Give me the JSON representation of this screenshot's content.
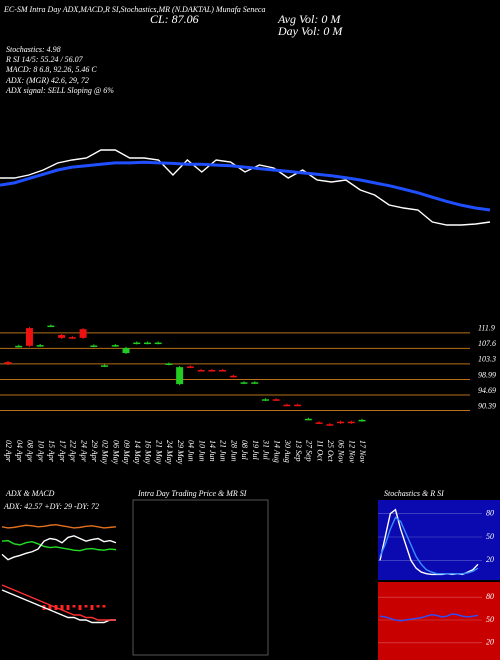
{
  "header": {
    "title": "EC-SM Intra Day ADX,MACD,R SI,Stochastics,MR (N.DAKTAL) Munafa Seneca",
    "close": "CL: 87.06",
    "avg_vol": "Avg Vol: 0  M",
    "day_vol": "Day Vol: 0  M",
    "stochastics": "Stochastics: 4.98",
    "rsi": "R  SI 14/5: 55.24 / 56.07",
    "macd": "MACD: 8  6.8, 92.26, 5.46  C",
    "adx": "ADX:  (MGR) 42.6, 29, 72",
    "adx_signal": "ADX  signal: SELL Sloping @ 6%"
  },
  "chart_data": [
    {
      "type": "line",
      "ylim": [
        80,
        115
      ],
      "series": [
        {
          "color": "#ffffff",
          "values": [
            101.7,
            101.7,
            102.75,
            104.5,
            106.95,
            108,
            108.7,
            111.5,
            111.5,
            108.7,
            108.7,
            108,
            102.75,
            108,
            103.8,
            108,
            107.3,
            103.8,
            106.25,
            105.2,
            101.7,
            104.5,
            101,
            100.3,
            101,
            97.5,
            95.75,
            92.25,
            91.2,
            90.5,
            86.3,
            85.25,
            85.25,
            85.6,
            86.3
          ]
        },
        {
          "color": "#1f4fff",
          "values": [
            99.2,
            100,
            101.5,
            103,
            104.5,
            105.5,
            106,
            106.5,
            107,
            107,
            107.2,
            107,
            106.8,
            106.5,
            106.5,
            106.2,
            106,
            105.5,
            105,
            104.5,
            104,
            103.5,
            103,
            102.5,
            101.8,
            101,
            100,
            99,
            97.8,
            96.5,
            95,
            93.5,
            92.2,
            91.2,
            90.5
          ]
        }
      ]
    },
    {
      "type": "candlestick",
      "categories": [
        "02 Apr",
        "04 Apr",
        "08 Apr",
        "10 Apr",
        "15 Apr",
        "17 Apr",
        "22 Apr",
        "24 Apr",
        "29 Apr",
        "02 May",
        "06 May",
        "09 May",
        "14 May",
        "16 May",
        "21 May",
        "24 May",
        "29 May",
        "04 Jun",
        "10 Jun",
        "14 Jun",
        "21 Jun",
        "28 Jun",
        "08 Jul",
        "19 Jul",
        "31 Jul",
        "14 Aug",
        "30 Aug",
        "13 Sep",
        "27 Sep",
        "11 Oct",
        "25 Oct",
        "06 Nov",
        "12 Nov",
        "17 Nov"
      ],
      "open": [
        103.8,
        108.2,
        113.2,
        108.3,
        113.8,
        111.3,
        110.7,
        112.9,
        108.2,
        102.7,
        108.3,
        106.3,
        109.0,
        109.0,
        109.0,
        103.2,
        97.7,
        102.6,
        101.6,
        101.6,
        101.6,
        100.0,
        98.0,
        98.0,
        93.3,
        93.5,
        92.0,
        92.0,
        88.0,
        87.1,
        86.6,
        87.3,
        87.3,
        87.6
      ],
      "high": [
        104.1,
        108.6,
        113.5,
        108.8,
        114.2,
        111.6,
        111.0,
        113.2,
        108.7,
        103.2,
        108.8,
        108.0,
        109.5,
        109.5,
        109.5,
        103.7,
        102.7,
        102.9,
        101.9,
        101.9,
        101.9,
        100.3,
        98.5,
        98.5,
        93.8,
        93.8,
        92.3,
        92.3,
        88.4,
        87.4,
        86.9,
        87.6,
        87.6,
        88.1
      ],
      "low": [
        103.0,
        107.9,
        108.0,
        108.0,
        113.5,
        110.2,
        110.2,
        110.2,
        107.9,
        102.4,
        108.0,
        106.0,
        108.7,
        108.7,
        108.7,
        102.9,
        97.4,
        102.1,
        101.2,
        101.2,
        101.2,
        99.5,
        97.7,
        97.7,
        93.0,
        93.0,
        91.6,
        91.6,
        87.7,
        86.7,
        86.2,
        86.7,
        86.7,
        87.3
      ],
      "close": [
        103.3,
        108.3,
        108.3,
        108.5,
        113.9,
        110.5,
        110.5,
        110.5,
        108.4,
        102.9,
        108.5,
        107.7,
        109.2,
        109.2,
        109.2,
        103.4,
        102.4,
        102.4,
        101.5,
        101.5,
        101.5,
        99.8,
        98.2,
        98.2,
        93.5,
        93.3,
        91.9,
        91.9,
        88.1,
        87.0,
        86.5,
        87.0,
        87.0,
        87.8
      ],
      "up_color": "#22cc22",
      "down_color": "#ee1111",
      "ylim": [
        85,
        116
      ],
      "yticks": [
        111.9,
        107.6,
        103.3,
        98.99,
        94.69,
        90.39
      ],
      "grid": true,
      "grid_color": "#b8701a"
    },
    {
      "type": "line",
      "title": "ADX  & MACD",
      "label": "ADX: 42.57  +DY: 29  -DY: 72",
      "ylim": [
        0,
        100
      ],
      "series": [
        {
          "color": "#e07020",
          "values": [
            72,
            70,
            71,
            73,
            75,
            74,
            72,
            73,
            75,
            76,
            74,
            72,
            70,
            71,
            73,
            74,
            72,
            70,
            71,
            72
          ]
        },
        {
          "color": "#22dd22",
          "values": [
            45,
            46,
            40,
            38,
            42,
            44,
            40,
            35,
            33,
            34,
            32,
            30,
            28,
            27,
            30,
            31,
            29,
            28,
            30,
            29
          ]
        },
        {
          "color": "#ffffff",
          "values": [
            20,
            10,
            15,
            18,
            22,
            25,
            30,
            45,
            50,
            48,
            42,
            52,
            55,
            50,
            45,
            48,
            50,
            44,
            46,
            42
          ]
        }
      ]
    },
    {
      "type": "line",
      "ylim": [
        -10,
        10
      ],
      "series": [
        {
          "color": "#ffffff",
          "values": [
            6,
            5,
            4,
            3,
            2,
            1,
            0,
            -1,
            -2,
            -3,
            -4,
            -5,
            -5,
            -6,
            -6,
            -7,
            -7,
            -7,
            -6,
            -6
          ]
        },
        {
          "color": "#ff3030",
          "values": [
            8,
            7,
            6,
            5,
            4,
            3,
            2,
            1,
            0,
            -1,
            -2,
            -3,
            -4,
            -4,
            -5,
            -5,
            -6,
            -6,
            -6,
            -6
          ]
        }
      ],
      "histogram": {
        "color": "#ff2222",
        "values": [
          0,
          0,
          0,
          0,
          0,
          0,
          0,
          -2,
          -2,
          -2,
          -2,
          -2,
          -1,
          -2,
          -1,
          -2,
          -1,
          -1,
          0,
          0
        ]
      }
    },
    {
      "type": "line",
      "title": "Intra  Day Trading Price  & MR SI"
    },
    {
      "type": "line",
      "title": "Stochastics  & R SI",
      "background": "#0a0ab0",
      "ylim": [
        0,
        100
      ],
      "yticks": [
        80,
        50,
        20
      ],
      "series": [
        {
          "color": "#ffffff",
          "values": [
            20,
            50,
            80,
            85,
            60,
            40,
            20,
            10,
            5,
            3,
            2,
            2,
            2,
            3,
            2,
            3,
            2,
            5,
            8,
            15
          ]
        },
        {
          "color": "#3a8cff",
          "values": [
            25,
            40,
            60,
            75,
            70,
            55,
            40,
            25,
            15,
            8,
            5,
            3,
            3,
            3,
            3,
            3,
            3,
            4,
            6,
            10
          ]
        }
      ]
    },
    {
      "type": "line",
      "background": "#c80000",
      "ylim": [
        0,
        100
      ],
      "yticks": [
        80,
        50,
        20
      ],
      "series": [
        {
          "color": "#2a50ff",
          "values": [
            55,
            54,
            52,
            50,
            49,
            50,
            51,
            52,
            53,
            55,
            57,
            56,
            54,
            55,
            58,
            57,
            55,
            54,
            55,
            56
          ]
        }
      ]
    }
  ]
}
